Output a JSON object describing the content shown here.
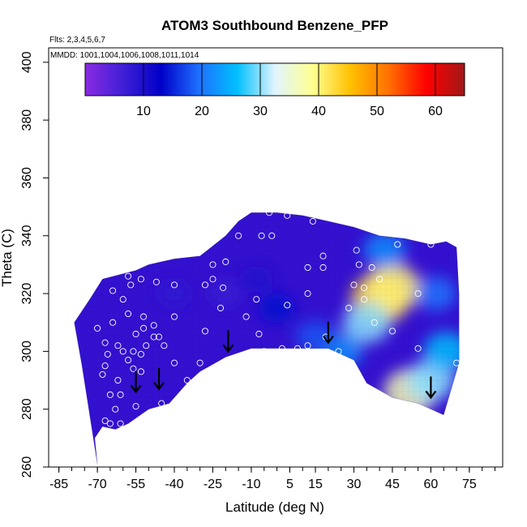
{
  "chart_data": {
    "type": "heatmap",
    "title": "ATOM3 Southbound Benzene_PFP",
    "subtitle_flights": "Flts: 2,3,4,5,6,7",
    "subtitle_dates": "MMDD: 1001,1004,1006,1008,1011,1014",
    "xlabel": "Latitude (deg N)",
    "ylabel": "Theta (C)",
    "xlim": [
      -89,
      88
    ],
    "ylim": [
      260,
      405
    ],
    "x_ticks": [
      "-85",
      "-70",
      "-55",
      "-40",
      "-25",
      "-10",
      "5",
      "15",
      "30",
      "45",
      "60",
      "75"
    ],
    "x_tick_values": [
      -85,
      -70,
      -55,
      -40,
      -25,
      -10,
      5,
      15,
      30,
      45,
      60,
      75
    ],
    "y_ticks": [
      "260",
      "280",
      "300",
      "320",
      "340",
      "360",
      "380",
      "400"
    ],
    "y_tick_values": [
      260,
      280,
      300,
      320,
      340,
      360,
      380,
      400
    ],
    "colorbar": {
      "min": 0,
      "max": 65,
      "ticks": [
        "10",
        "20",
        "30",
        "40",
        "50",
        "60"
      ],
      "tick_values": [
        10,
        20,
        30,
        40,
        50,
        60
      ],
      "colors": [
        "#8a2be2",
        "#3f1fd6",
        "#0000c8",
        "#1e70ff",
        "#00bfff",
        "#e0f4ff",
        "#ffff90",
        "#ffc000",
        "#ff7000",
        "#ff0000",
        "#a01818"
      ]
    },
    "surface_boundary": {
      "lat": [
        -70,
        -76,
        -79,
        -73,
        -68,
        -55,
        -50,
        -45,
        -40,
        -30,
        -20,
        -15,
        -10,
        0,
        10,
        20,
        30,
        40,
        50,
        60,
        66,
        70,
        71,
        71,
        65,
        55,
        45,
        35,
        30,
        20,
        10,
        0,
        -10,
        -20,
        -30,
        -35,
        -42,
        -50,
        -58,
        -63,
        -68,
        -71,
        -70
      ],
      "theta": [
        261,
        295,
        310,
        318,
        325,
        328,
        330,
        331,
        332,
        333,
        340,
        345,
        348,
        348,
        347,
        345,
        343,
        340,
        339,
        337,
        338,
        336,
        320,
        296,
        278,
        282,
        284,
        289,
        297,
        301,
        301,
        301,
        301,
        298,
        293,
        289,
        282,
        280,
        275,
        273,
        274,
        270,
        261
      ]
    },
    "hotspots": [
      {
        "lat": 40,
        "theta": 318,
        "value": 44
      },
      {
        "lat": 45,
        "theta": 322,
        "value": 40
      },
      {
        "lat": 35,
        "theta": 310,
        "value": 30
      },
      {
        "lat": 52,
        "theta": 286,
        "value": 37
      },
      {
        "lat": 60,
        "theta": 290,
        "value": 30
      },
      {
        "lat": 66,
        "theta": 300,
        "value": 26
      },
      {
        "lat": 25,
        "theta": 300,
        "value": 22
      },
      {
        "lat": 15,
        "theta": 305,
        "value": 18
      },
      {
        "lat": 42,
        "theta": 335,
        "value": 22
      },
      {
        "lat": 62,
        "theta": 320,
        "value": 20
      },
      {
        "lat": 0,
        "theta": 315,
        "value": 14
      },
      {
        "lat": -8,
        "theta": 325,
        "value": 10
      },
      {
        "lat": -40,
        "theta": 320,
        "value": 8
      },
      {
        "lat": -20,
        "theta": 320,
        "value": 7
      }
    ],
    "sample_points": [
      {
        "lat": -70,
        "theta": 308
      },
      {
        "lat": -64,
        "theta": 310
      },
      {
        "lat": -67,
        "theta": 303
      },
      {
        "lat": -66,
        "theta": 299
      },
      {
        "lat": -67,
        "theta": 295
      },
      {
        "lat": -68,
        "theta": 292
      },
      {
        "lat": -62,
        "theta": 290
      },
      {
        "lat": -65,
        "theta": 285
      },
      {
        "lat": -61,
        "theta": 285
      },
      {
        "lat": -63,
        "theta": 280
      },
      {
        "lat": -67,
        "theta": 276
      },
      {
        "lat": -65,
        "theta": 275
      },
      {
        "lat": -61,
        "theta": 275
      },
      {
        "lat": -68,
        "theta": 267
      },
      {
        "lat": -55,
        "theta": 281
      },
      {
        "lat": -50,
        "theta": 278
      },
      {
        "lat": -45,
        "theta": 282
      },
      {
        "lat": -56,
        "theta": 294
      },
      {
        "lat": -53,
        "theta": 293
      },
      {
        "lat": -58,
        "theta": 297
      },
      {
        "lat": -53,
        "theta": 299
      },
      {
        "lat": -51,
        "theta": 302
      },
      {
        "lat": -56,
        "theta": 300
      },
      {
        "lat": -60,
        "theta": 300
      },
      {
        "lat": -62,
        "theta": 302
      },
      {
        "lat": -55,
        "theta": 306
      },
      {
        "lat": -48,
        "theta": 305
      },
      {
        "lat": -44,
        "theta": 302
      },
      {
        "lat": -46,
        "theta": 305
      },
      {
        "lat": -52,
        "theta": 308
      },
      {
        "lat": -48,
        "theta": 309
      },
      {
        "lat": -40,
        "theta": 312
      },
      {
        "lat": -52,
        "theta": 312
      },
      {
        "lat": -58,
        "theta": 313
      },
      {
        "lat": -64,
        "theta": 321
      },
      {
        "lat": -60,
        "theta": 318
      },
      {
        "lat": -57,
        "theta": 323
      },
      {
        "lat": -53,
        "theta": 325
      },
      {
        "lat": -58,
        "theta": 326
      },
      {
        "lat": -63,
        "theta": 328
      },
      {
        "lat": -47,
        "theta": 324
      },
      {
        "lat": -40,
        "theta": 323
      },
      {
        "lat": -28,
        "theta": 323
      },
      {
        "lat": -25,
        "theta": 325
      },
      {
        "lat": -21,
        "theta": 322
      },
      {
        "lat": -25,
        "theta": 330
      },
      {
        "lat": -20,
        "theta": 331
      },
      {
        "lat": -28,
        "theta": 307
      },
      {
        "lat": -30,
        "theta": 296
      },
      {
        "lat": -40,
        "theta": 296
      },
      {
        "lat": -35,
        "theta": 290
      },
      {
        "lat": -24,
        "theta": 292
      },
      {
        "lat": -22,
        "theta": 315
      },
      {
        "lat": -8,
        "theta": 318
      },
      {
        "lat": -7,
        "theta": 306
      },
      {
        "lat": -12,
        "theta": 312
      },
      {
        "lat": -5,
        "theta": 300
      },
      {
        "lat": 2,
        "theta": 301
      },
      {
        "lat": 8,
        "theta": 301
      },
      {
        "lat": 12,
        "theta": 302
      },
      {
        "lat": 4,
        "theta": 316
      },
      {
        "lat": 12,
        "theta": 320
      },
      {
        "lat": 12,
        "theta": 329
      },
      {
        "lat": 18,
        "theta": 329
      },
      {
        "lat": -6,
        "theta": 340
      },
      {
        "lat": -2,
        "theta": 340
      },
      {
        "lat": -15,
        "theta": 340
      },
      {
        "lat": -3,
        "theta": 348
      },
      {
        "lat": 4,
        "theta": 347
      },
      {
        "lat": 14,
        "theta": 345
      },
      {
        "lat": 18,
        "theta": 333
      },
      {
        "lat": 19,
        "theta": 305
      },
      {
        "lat": 24,
        "theta": 300
      },
      {
        "lat": 28,
        "theta": 296
      },
      {
        "lat": 31,
        "theta": 335
      },
      {
        "lat": 32,
        "theta": 330
      },
      {
        "lat": 37,
        "theta": 329
      },
      {
        "lat": 34,
        "theta": 318
      },
      {
        "lat": 38,
        "theta": 310
      },
      {
        "lat": 28,
        "theta": 315
      },
      {
        "lat": 40,
        "theta": 325
      },
      {
        "lat": 45,
        "theta": 307
      },
      {
        "lat": 47,
        "theta": 337
      },
      {
        "lat": 30,
        "theta": 323
      },
      {
        "lat": 34,
        "theta": 322
      },
      {
        "lat": 31,
        "theta": 289
      },
      {
        "lat": 55,
        "theta": 301
      },
      {
        "lat": 55,
        "theta": 320
      },
      {
        "lat": 60,
        "theta": 337
      },
      {
        "lat": 70,
        "theta": 296
      }
    ],
    "arrows": [
      {
        "lat": -55,
        "theta": 286
      },
      {
        "lat": -46,
        "theta": 287
      },
      {
        "lat": -19,
        "theta": 300
      },
      {
        "lat": 20,
        "theta": 303
      },
      {
        "lat": 60,
        "theta": 284
      }
    ]
  }
}
